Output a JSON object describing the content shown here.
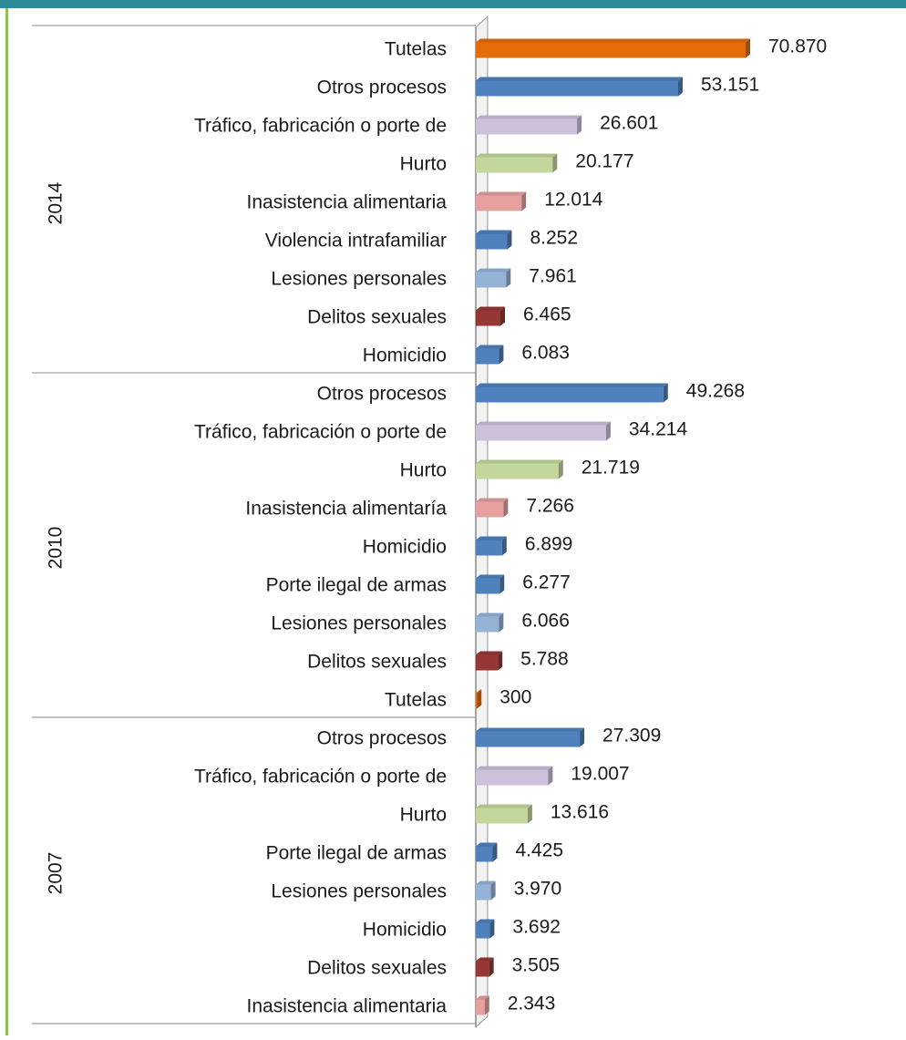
{
  "chart_data": {
    "type": "bar",
    "orientation": "horizontal",
    "groups": [
      {
        "name": "2014",
        "categories": [
          "Tutelas",
          "Otros procesos",
          "Tráfico, fabricación o porte de",
          "Hurto",
          "Inasistencia alimentaria",
          "Violencia intrafamiliar",
          "Lesiones personales",
          "Delitos sexuales",
          "Homicidio"
        ],
        "values": [
          70870,
          53151,
          26601,
          20177,
          12014,
          8252,
          7961,
          6465,
          6083
        ],
        "value_labels": [
          "70.870",
          "53.151",
          "26.601",
          "20.177",
          "12.014",
          "8.252",
          "7.961",
          "6.465",
          "6.083"
        ],
        "colors": [
          "#e46c0a",
          "#4f81bd",
          "#ccc0da",
          "#c3d69b",
          "#e6a0a0",
          "#4f81bd",
          "#95b3d7",
          "#953735",
          "#4f81bd"
        ]
      },
      {
        "name": "2010",
        "categories": [
          "Otros procesos",
          "Tráfico, fabricación o porte de",
          "Hurto",
          "Inasistencia alimentaría",
          "Homicidio",
          "Porte ilegal de armas",
          "Lesiones personales",
          "Delitos sexuales",
          "Tutelas"
        ],
        "values": [
          49268,
          34214,
          21719,
          7266,
          6899,
          6277,
          6066,
          5788,
          300
        ],
        "value_labels": [
          "49.268",
          "34.214",
          "21.719",
          "7.266",
          "6.899",
          "6.277",
          "6.066",
          "5.788",
          "300"
        ],
        "colors": [
          "#4f81bd",
          "#ccc0da",
          "#c3d69b",
          "#e6a0a0",
          "#4f81bd",
          "#4f81bd",
          "#95b3d7",
          "#953735",
          "#e46c0a"
        ]
      },
      {
        "name": "2007",
        "categories": [
          "Otros procesos",
          "Tráfico, fabricación o porte de",
          "Hurto",
          "Porte ilegal de armas",
          "Lesiones personales",
          "Homicidio",
          "Delitos sexuales",
          "Inasistencia alimentaria"
        ],
        "values": [
          27309,
          19007,
          13616,
          4425,
          3970,
          3692,
          3505,
          2343
        ],
        "value_labels": [
          "27.309",
          "19.007",
          "13.616",
          "4.425",
          "3.970",
          "3.692",
          "3.505",
          "2.343"
        ],
        "colors": [
          "#4f81bd",
          "#ccc0da",
          "#c3d69b",
          "#4f81bd",
          "#95b3d7",
          "#4f81bd",
          "#953735",
          "#e6a0a0"
        ]
      }
    ]
  }
}
